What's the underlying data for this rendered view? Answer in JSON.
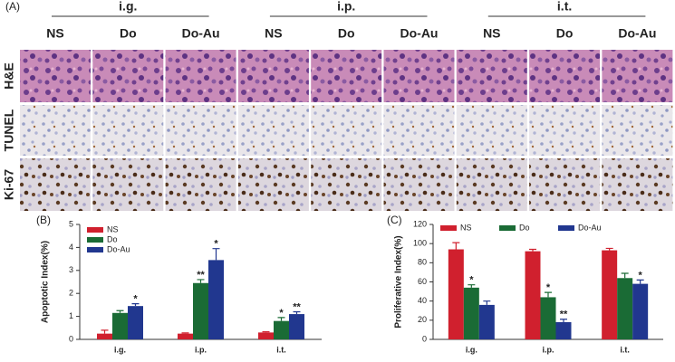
{
  "panel_a": {
    "label": "(A)",
    "groups": [
      "i.g.",
      "i.p.",
      "i.t."
    ],
    "columns": [
      "NS",
      "Do",
      "Do-Au"
    ],
    "rows": [
      "H&E",
      "TUNEL",
      "Ki-67"
    ]
  },
  "chart_data": [
    {
      "type": "bar",
      "panel_label": "(B)",
      "y_label": "Apoptotic Index(%)",
      "categories": [
        "i.g.",
        "i.p.",
        "i.t."
      ],
      "ylim": [
        0,
        5
      ],
      "yticks": [
        0,
        1,
        2,
        3,
        4,
        5
      ],
      "legend": "upper left",
      "series": [
        {
          "name": "NS",
          "color": "#d0202e",
          "values": [
            0.25,
            0.25,
            0.3
          ],
          "error": [
            0.15,
            0.03,
            0.03
          ],
          "annotations": [
            null,
            null,
            null
          ]
        },
        {
          "name": "Do",
          "color": "#1a6b35",
          "values": [
            1.15,
            2.45,
            0.8
          ],
          "error": [
            0.1,
            0.15,
            0.15
          ],
          "annotations": [
            null,
            "**",
            "*"
          ]
        },
        {
          "name": "Do-Au",
          "color": "#21378f",
          "values": [
            1.45,
            3.45,
            1.1
          ],
          "error": [
            0.1,
            0.5,
            0.1
          ],
          "annotations": [
            "*",
            "*",
            "**"
          ]
        }
      ]
    },
    {
      "type": "bar",
      "panel_label": "(C)",
      "y_label": "Proliferative Index(%)",
      "categories": [
        "i.g.",
        "i.p.",
        "i.t."
      ],
      "ylim": [
        0,
        120
      ],
      "yticks": [
        0,
        20,
        40,
        60,
        80,
        100,
        120
      ],
      "legend": "upper center",
      "series": [
        {
          "name": "NS",
          "color": "#d0202e",
          "values": [
            94,
            92,
            93
          ],
          "error": [
            7,
            2,
            2
          ],
          "annotations": [
            null,
            null,
            null
          ]
        },
        {
          "name": "Do",
          "color": "#1a6b35",
          "values": [
            54,
            44,
            64
          ],
          "error": [
            3,
            5,
            5
          ],
          "annotations": [
            "*",
            "*",
            null
          ]
        },
        {
          "name": "Do-Au",
          "color": "#21378f",
          "values": [
            36,
            18,
            58
          ],
          "error": [
            4,
            3,
            4
          ],
          "annotations": [
            null,
            "**",
            "*"
          ]
        }
      ]
    }
  ]
}
